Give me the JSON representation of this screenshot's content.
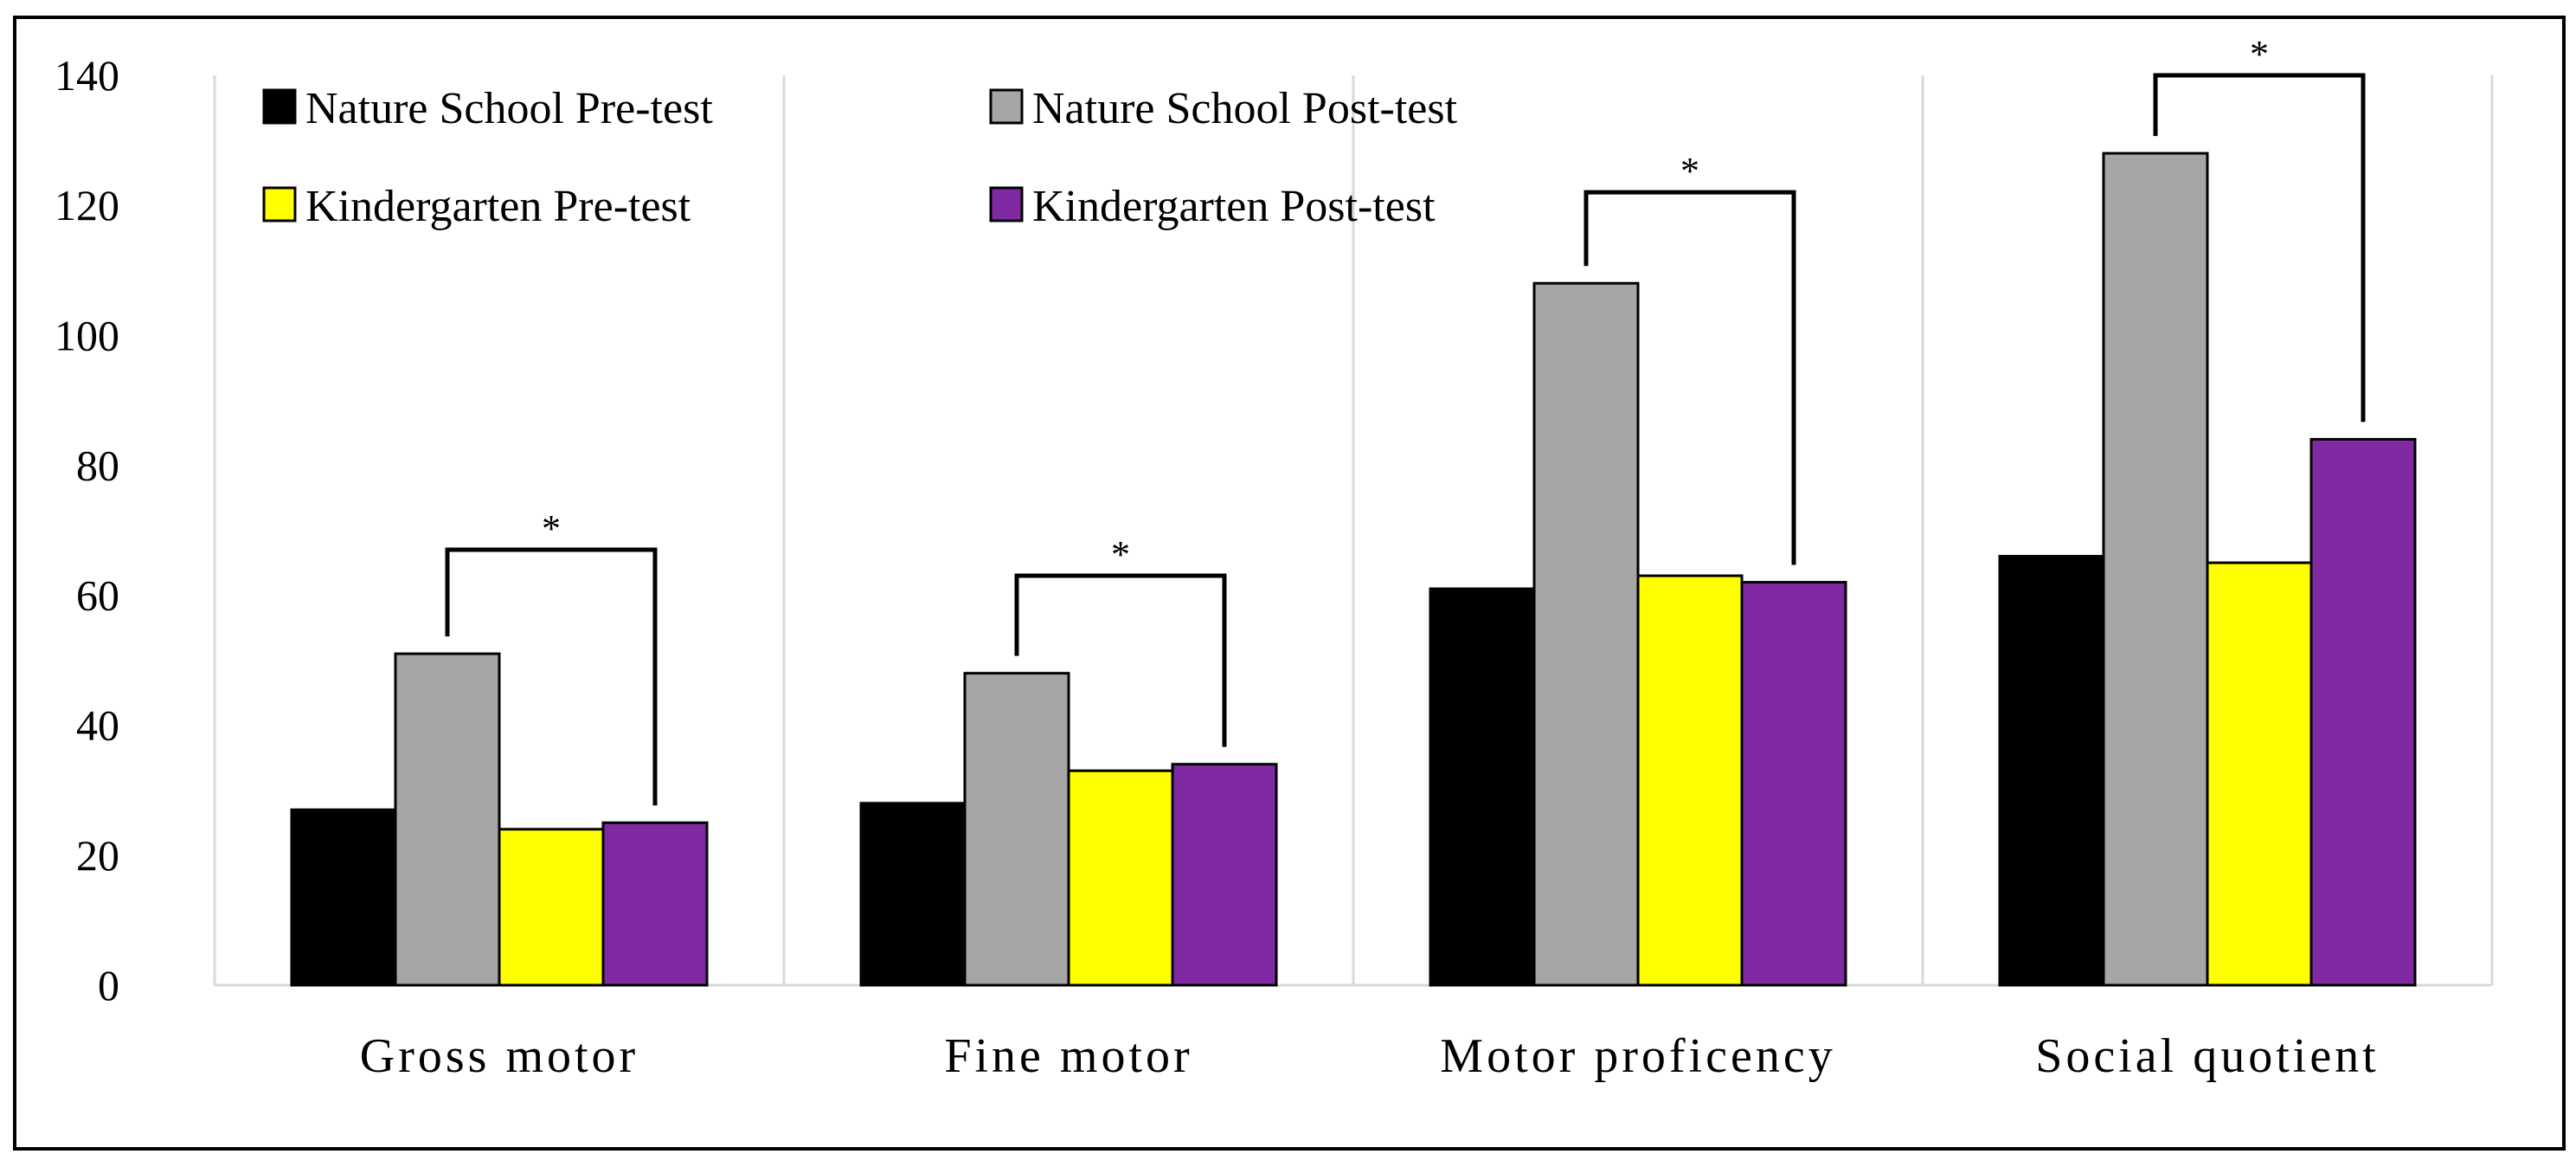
{
  "chart_data": {
    "type": "bar",
    "categories": [
      "Gross motor",
      "Fine motor",
      "Motor proficency",
      "Social quotient"
    ],
    "series": [
      {
        "name": "Nature School Pre-test",
        "color": "#000000",
        "values": [
          27,
          28,
          61,
          66
        ]
      },
      {
        "name": "Nature School Post-test",
        "color": "#a6a6a6",
        "values": [
          51,
          48,
          108,
          128
        ]
      },
      {
        "name": "Kindergarten Pre-test",
        "color": "#ffff00",
        "values": [
          24,
          33,
          63,
          65
        ]
      },
      {
        "name": "Kindergarten Post-test",
        "color": "#7f2aa3",
        "values": [
          25,
          34,
          62,
          84
        ]
      }
    ],
    "ylim": [
      0,
      140
    ],
    "yticks": [
      0,
      20,
      40,
      60,
      80,
      100,
      120,
      140
    ],
    "grid": "vertical category separators",
    "legend_position": "top-left",
    "significance": [
      {
        "category": "Gross motor",
        "from_series": "Nature School Post-test",
        "to_series": "Kindergarten Post-test",
        "label": "*",
        "level": 67
      },
      {
        "category": "Fine motor",
        "from_series": "Nature School Post-test",
        "to_series": "Kindergarten Post-test",
        "label": "*",
        "level": 63
      },
      {
        "category": "Motor proficency",
        "from_series": "Nature School Post-test",
        "to_series": "Kindergarten Post-test",
        "label": "*",
        "level": 122
      },
      {
        "category": "Social quotient",
        "from_series": "Nature School Post-test",
        "to_series": "Kindergarten Post-test",
        "label": "*",
        "level": 140
      }
    ]
  }
}
